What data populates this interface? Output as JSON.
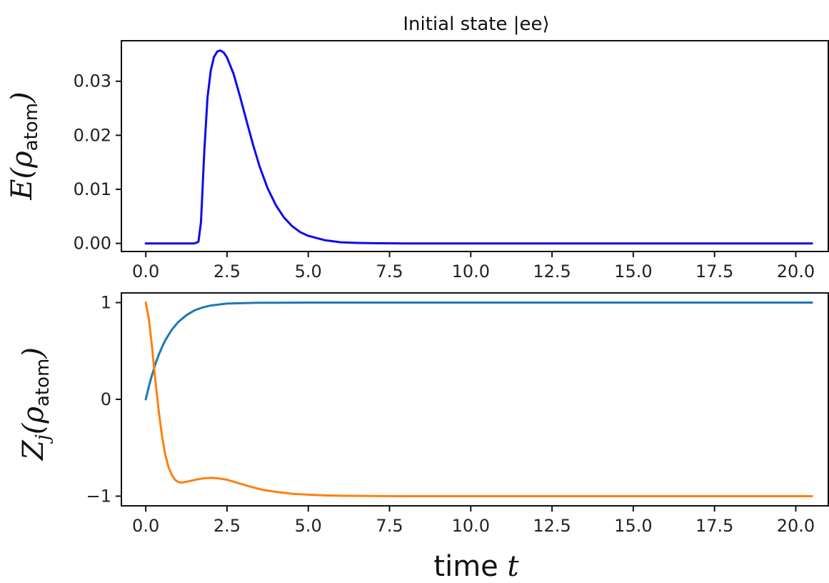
{
  "chart_data": [
    {
      "type": "line",
      "title": "Initial state |ee⟩",
      "xlabel": "",
      "ylabel_main": "E(ρ",
      "ylabel_sub": "atom",
      "ylabel_close": ")",
      "xlim": [
        -0.75,
        21.0
      ],
      "ylim": [
        -0.0015,
        0.0375
      ],
      "xticks": [
        0.0,
        2.5,
        5.0,
        7.5,
        10.0,
        12.5,
        15.0,
        17.5,
        20.0
      ],
      "xtick_labels": [
        "0.0",
        "2.5",
        "5.0",
        "7.5",
        "10.0",
        "12.5",
        "15.0",
        "17.5",
        "20.0"
      ],
      "yticks": [
        0.0,
        0.01,
        0.02,
        0.03
      ],
      "ytick_labels": [
        "0.00",
        "0.01",
        "0.02",
        "0.03"
      ],
      "grid": false,
      "series": [
        {
          "color": "#0a0aee",
          "x": [
            0.0,
            0.5,
            1.0,
            1.5,
            1.62,
            1.7,
            1.8,
            1.9,
            2.0,
            2.1,
            2.2,
            2.3,
            2.4,
            2.5,
            2.7,
            2.9,
            3.1,
            3.3,
            3.5,
            3.75,
            4.0,
            4.25,
            4.5,
            4.75,
            5.0,
            5.5,
            6.0,
            6.5,
            7.0,
            8.0,
            10.0,
            12.0,
            14.0,
            16.0,
            18.0,
            20.5
          ],
          "y": [
            0.0,
            0.0,
            0.0,
            0.0,
            0.0003,
            0.004,
            0.017,
            0.027,
            0.032,
            0.0345,
            0.0355,
            0.0357,
            0.0353,
            0.0344,
            0.0314,
            0.0272,
            0.0227,
            0.0183,
            0.0143,
            0.0102,
            0.0071,
            0.0048,
            0.0032,
            0.0021,
            0.0014,
            0.0006,
            0.0002,
            8e-05,
            3e-05,
            0.0,
            0.0,
            0.0,
            0.0,
            0.0,
            0.0,
            0.0
          ]
        }
      ]
    },
    {
      "type": "line",
      "title": "",
      "xlabel_main": "time ",
      "xlabel_var": "t",
      "ylabel_main": "Z",
      "ylabel_j": "j",
      "ylabel_mid": "(ρ",
      "ylabel_sub": "atom",
      "ylabel_close": ")",
      "xlim": [
        -0.75,
        21.0
      ],
      "ylim": [
        -1.1,
        1.1
      ],
      "xticks": [
        0.0,
        2.5,
        5.0,
        7.5,
        10.0,
        12.5,
        15.0,
        17.5,
        20.0
      ],
      "xtick_labels": [
        "0.0",
        "2.5",
        "5.0",
        "7.5",
        "10.0",
        "12.5",
        "15.0",
        "17.5",
        "20.0"
      ],
      "yticks": [
        1,
        0,
        -1
      ],
      "ytick_labels": [
        "1",
        "0",
        "−1"
      ],
      "grid": false,
      "series": [
        {
          "color": "#1f77b4",
          "x": [
            0.0,
            0.1,
            0.2,
            0.3,
            0.4,
            0.5,
            0.6,
            0.8,
            1.0,
            1.25,
            1.5,
            1.75,
            2.0,
            2.5,
            3.0,
            3.5,
            4.0,
            5.0,
            6.0,
            8.0,
            10.0,
            15.0,
            20.5
          ],
          "y": [
            0.0,
            0.14,
            0.26,
            0.37,
            0.46,
            0.54,
            0.61,
            0.72,
            0.8,
            0.87,
            0.92,
            0.95,
            0.97,
            0.99,
            0.995,
            0.998,
            0.999,
            1.0,
            1.0,
            1.0,
            1.0,
            1.0,
            1.0
          ]
        },
        {
          "color": "#ff7f0e",
          "x": [
            0.0,
            0.1,
            0.2,
            0.3,
            0.4,
            0.5,
            0.6,
            0.7,
            0.8,
            0.9,
            1.0,
            1.1,
            1.2,
            1.4,
            1.6,
            1.8,
            2.0,
            2.2,
            2.5,
            2.8,
            3.2,
            3.6,
            4.0,
            4.5,
            5.0,
            5.5,
            6.0,
            7.0,
            8.0,
            10.0,
            12.0,
            15.0,
            18.0,
            20.5
          ],
          "y": [
            1.0,
            0.82,
            0.52,
            0.18,
            -0.12,
            -0.38,
            -0.57,
            -0.7,
            -0.78,
            -0.83,
            -0.855,
            -0.86,
            -0.855,
            -0.84,
            -0.825,
            -0.815,
            -0.81,
            -0.815,
            -0.83,
            -0.86,
            -0.9,
            -0.935,
            -0.955,
            -0.975,
            -0.985,
            -0.992,
            -0.996,
            -0.999,
            -1.0,
            -1.0,
            -1.0,
            -1.0,
            -1.0,
            -1.0
          ]
        }
      ]
    }
  ]
}
